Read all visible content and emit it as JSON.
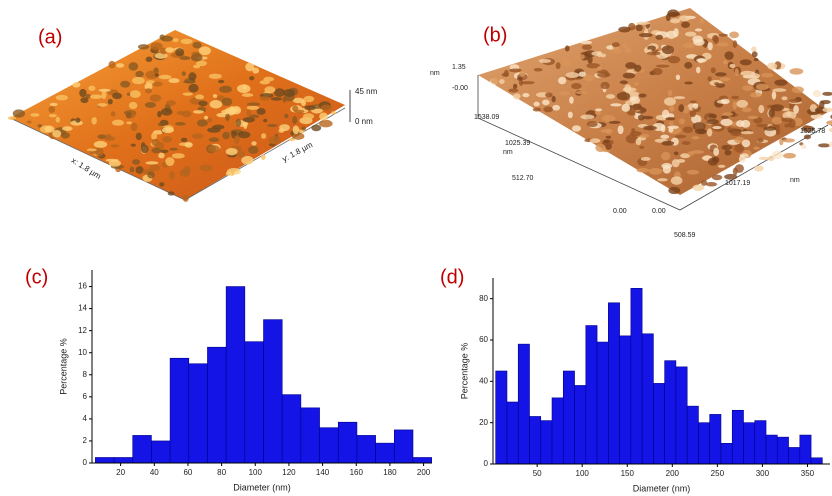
{
  "images": [
    {
      "label": "(a)",
      "texts": [
        "45 nm",
        "0 nm",
        "x: 1.8 µm",
        "y: 1.8 µm"
      ]
    },
    {
      "label": "(b)",
      "texts": [
        "nm",
        "1.35",
        "-0.00",
        "1538.09",
        "nm",
        "1025.39",
        "512.70",
        "0.00",
        "0.00",
        "508.59",
        "1017.19",
        "1525.78",
        "nm"
      ]
    }
  ],
  "chart_data": [
    {
      "type": "histogram",
      "panel_label": "(c)",
      "x_label": "Diameter (nm)",
      "y_label": "Percentage %",
      "color": "#1414e6",
      "bins": [
        5,
        16.1,
        27.2,
        38.3,
        49.4,
        60.5,
        71.6,
        82.7,
        93.8,
        104.9,
        116,
        127.1,
        138.2,
        149.3,
        160.4,
        171.5,
        182.6,
        193.7,
        204.8
      ],
      "values": [
        0.5,
        0.5,
        2.5,
        2,
        9.5,
        9,
        10.5,
        16,
        11,
        13,
        6.2,
        5,
        3.2,
        3.7,
        2.5,
        1.8,
        3,
        0.5
      ],
      "xlim": [
        3,
        205
      ],
      "xticks": [
        20,
        40,
        60,
        80,
        100,
        120,
        140,
        160,
        180,
        200
      ],
      "ylim": [
        0,
        17.5
      ],
      "yticks": [
        0,
        2,
        4,
        6,
        8,
        10,
        12,
        14,
        16
      ]
    },
    {
      "type": "histogram",
      "panel_label": "(d)",
      "x_label": "Diameter (nm)",
      "y_label": "Percentage %",
      "color": "#1414e6",
      "bins": [
        4,
        16.5,
        29,
        41.5,
        54,
        66.5,
        79,
        91.5,
        104,
        116.5,
        129,
        141.5,
        154,
        166.5,
        179,
        191.5,
        204,
        216.5,
        229,
        241.5,
        254,
        266.5,
        279,
        291.5,
        304,
        316.5,
        329,
        341.5,
        354,
        366.5
      ],
      "values": [
        45,
        30,
        58,
        23,
        21,
        32,
        45,
        38,
        67,
        59,
        78,
        62,
        85,
        63,
        39,
        50,
        47,
        28,
        20,
        24,
        10,
        26,
        20,
        21,
        14,
        13,
        8,
        14,
        3
      ],
      "xlim": [
        1,
        375
      ],
      "xticks": [
        50,
        100,
        150,
        200,
        250,
        300,
        350
      ],
      "ylim": [
        0,
        90
      ],
      "yticks": [
        0,
        20,
        40,
        60,
        80
      ]
    }
  ]
}
